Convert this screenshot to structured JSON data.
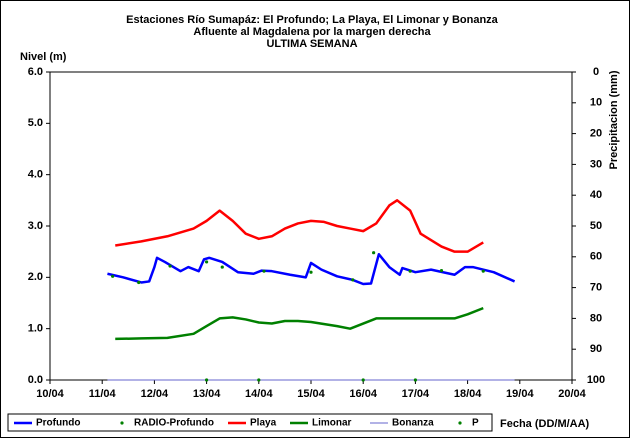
{
  "chart_data": {
    "type": "line",
    "title": [
      "Estaciones Río Sumapáz: El Profundo; La Playa, El Limonar y Bonanza",
      "Afluente al Magdalena por la margen derecha",
      "ULTIMA SEMANA"
    ],
    "y_label": "Nivel (m)",
    "y2_label": "Precipitacion (mm)",
    "x_label": "Fecha (DD/M/AA)",
    "xlim": [
      10,
      20
    ],
    "xticks": [
      {
        "value": 10,
        "label": "10/04"
      },
      {
        "value": 11,
        "label": "11/04"
      },
      {
        "value": 12,
        "label": "12/04"
      },
      {
        "value": 13,
        "label": "13/04"
      },
      {
        "value": 14,
        "label": "14/04"
      },
      {
        "value": 15,
        "label": "15/04"
      },
      {
        "value": 16,
        "label": "16/04"
      },
      {
        "value": 17,
        "label": "17/04"
      },
      {
        "value": 18,
        "label": "18/04"
      },
      {
        "value": 19,
        "label": "19/04"
      },
      {
        "value": 20,
        "label": "20/04"
      }
    ],
    "ylim": [
      0,
      6
    ],
    "yticks": [
      {
        "value": 0,
        "label": "0.0"
      },
      {
        "value": 1,
        "label": "1.0"
      },
      {
        "value": 2,
        "label": "2.0"
      },
      {
        "value": 3,
        "label": "3.0"
      },
      {
        "value": 4,
        "label": "4.0"
      },
      {
        "value": 5,
        "label": "5.0"
      },
      {
        "value": 6,
        "label": "6.0"
      }
    ],
    "y2lim": [
      100,
      0
    ],
    "y2ticks": [
      0,
      10,
      20,
      30,
      40,
      50,
      60,
      70,
      80,
      90,
      100
    ],
    "y2_inverted": true,
    "grid": false,
    "legend": "bottom",
    "series": [
      {
        "name": "Profundo",
        "color": "#0000ff",
        "marker": "line",
        "width": 2.5,
        "x": [
          11.1,
          11.4,
          11.75,
          11.9,
          12.0,
          12.05,
          12.2,
          12.5,
          12.65,
          12.85,
          12.95,
          13.05,
          13.3,
          13.6,
          13.9,
          14.05,
          14.25,
          14.6,
          14.9,
          15.0,
          15.2,
          15.5,
          15.8,
          16.0,
          16.15,
          16.3,
          16.5,
          16.7,
          16.75,
          17.0,
          17.3,
          17.75,
          17.95,
          18.1,
          18.5,
          18.9
        ],
        "values": [
          2.07,
          2.0,
          1.9,
          1.92,
          2.2,
          2.38,
          2.3,
          2.12,
          2.2,
          2.12,
          2.35,
          2.38,
          2.3,
          2.1,
          2.07,
          2.13,
          2.12,
          2.05,
          2.0,
          2.28,
          2.15,
          2.02,
          1.95,
          1.87,
          1.88,
          2.45,
          2.2,
          2.05,
          2.18,
          2.1,
          2.15,
          2.05,
          2.2,
          2.2,
          2.1,
          1.92
        ]
      },
      {
        "name": "RADIO-Profundo",
        "color": "#008000",
        "marker": "dot",
        "x": [
          11.2,
          11.7,
          12.3,
          13.0,
          13.3,
          14.1,
          15.0,
          15.8,
          16.2,
          16.9,
          17.5,
          18.3
        ],
        "values": [
          2.02,
          1.9,
          2.22,
          2.3,
          2.2,
          2.12,
          2.1,
          1.95,
          2.48,
          2.12,
          2.13,
          2.12
        ]
      },
      {
        "name": "Playa",
        "color": "#ff0000",
        "marker": "line",
        "width": 2.5,
        "x": [
          11.25,
          11.75,
          12.25,
          12.75,
          13.0,
          13.25,
          13.5,
          13.75,
          14.0,
          14.25,
          14.5,
          14.75,
          15.0,
          15.25,
          15.5,
          15.75,
          16.0,
          16.25,
          16.5,
          16.65,
          16.9,
          17.1,
          17.5,
          17.75,
          18.0,
          18.3
        ],
        "values": [
          2.62,
          2.7,
          2.8,
          2.95,
          3.1,
          3.3,
          3.1,
          2.85,
          2.75,
          2.8,
          2.95,
          3.05,
          3.1,
          3.08,
          3.0,
          2.95,
          2.9,
          3.05,
          3.4,
          3.5,
          3.3,
          2.85,
          2.6,
          2.5,
          2.5,
          2.68
        ]
      },
      {
        "name": "Limonar",
        "color": "#008000",
        "marker": "line",
        "width": 2.5,
        "x": [
          11.25,
          11.75,
          12.25,
          12.75,
          13.0,
          13.25,
          13.5,
          13.75,
          14.0,
          14.25,
          14.5,
          14.75,
          15.0,
          15.5,
          15.75,
          16.0,
          16.25,
          16.75,
          17.25,
          17.75,
          18.0,
          18.3
        ],
        "values": [
          0.8,
          0.81,
          0.82,
          0.9,
          1.05,
          1.2,
          1.22,
          1.18,
          1.12,
          1.1,
          1.15,
          1.15,
          1.13,
          1.05,
          1.0,
          1.1,
          1.2,
          1.2,
          1.2,
          1.2,
          1.28,
          1.4
        ]
      },
      {
        "name": "Bonanza",
        "color": "#6666cc",
        "marker": "line",
        "width": 1,
        "x": [
          11.1,
          18.9
        ],
        "values": [
          0,
          0
        ]
      },
      {
        "name": "P",
        "color": "#008000",
        "marker": "dot",
        "x": [
          13.0,
          14.0,
          16.0,
          17.0
        ],
        "values": [
          0,
          0,
          0,
          0
        ]
      }
    ]
  }
}
